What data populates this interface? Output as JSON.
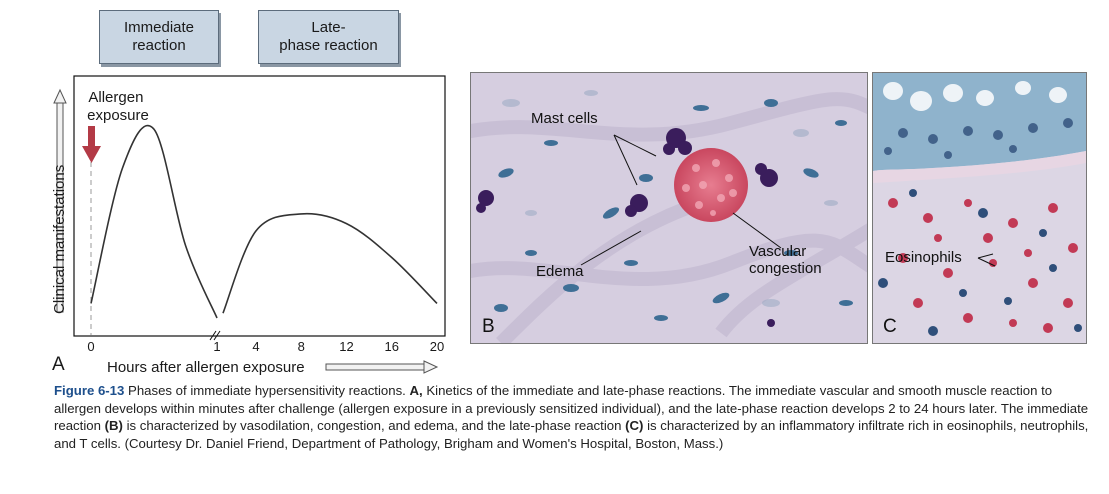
{
  "phase_boxes": {
    "immediate": "Immediate\nreaction",
    "late": "Late-\nphase reaction"
  },
  "chart_data": {
    "type": "line",
    "panel_letter": "A",
    "xlabel": "Hours after allergen exposure",
    "ylabel": "Clinical manifestations",
    "x_ticks": [
      "0",
      "1",
      "4",
      "8",
      "12",
      "16",
      "20"
    ],
    "axis_break_after": "1",
    "annotation": "Allergen\nexposure",
    "series": [
      {
        "x": [
          0,
          0.25,
          0.5,
          0.75,
          1,
          4,
          8,
          12,
          16,
          20
        ],
        "y": [
          0.06,
          0.62,
          0.78,
          0.3,
          0.0,
          0.36,
          0.43,
          0.39,
          0.25,
          0.06
        ]
      }
    ]
  },
  "panel_b": {
    "letter": "B",
    "labels": {
      "mast_cells": "Mast cells",
      "edema": "Edema",
      "vascular": "Vascular\ncongestion"
    },
    "colors": {
      "background": "#d6cee0",
      "mast_cells": "#3a1d5c",
      "rbc": "#d65a74",
      "nuclei": "#3f6f96"
    }
  },
  "panel_c": {
    "letter": "C",
    "labels": {
      "eosinophils": "Eosinophils"
    },
    "colors": {
      "epithelium": "#6f9cb8",
      "eosinophils": "#c23a55",
      "nuclei": "#2f4f7a"
    }
  },
  "caption": {
    "figure_number": "Figure 6-13",
    "title": "Phases of immediate hypersensitivity reactions.",
    "label_a": "A,",
    "text_1": "Kinetics of the immediate and late-phase reactions. The immediate vascular and smooth muscle reaction to allergen develops within minutes after challenge (allergen exposure in a previously sensitized individual), and the late-phase reaction develops 2 to 24 hours later. The immediate reaction",
    "label_b": "(B)",
    "text_2": "is characterized by vasodilation, congestion, and edema, and the late-phase reaction",
    "label_c": "(C)",
    "text_3": "is characterized by an inflammatory infiltrate rich in eosinophils, neutrophils, and T cells. (Courtesy Dr. Daniel Friend, Department of Pathology, Brigham and Women's Hospital, Boston, Mass.)"
  }
}
